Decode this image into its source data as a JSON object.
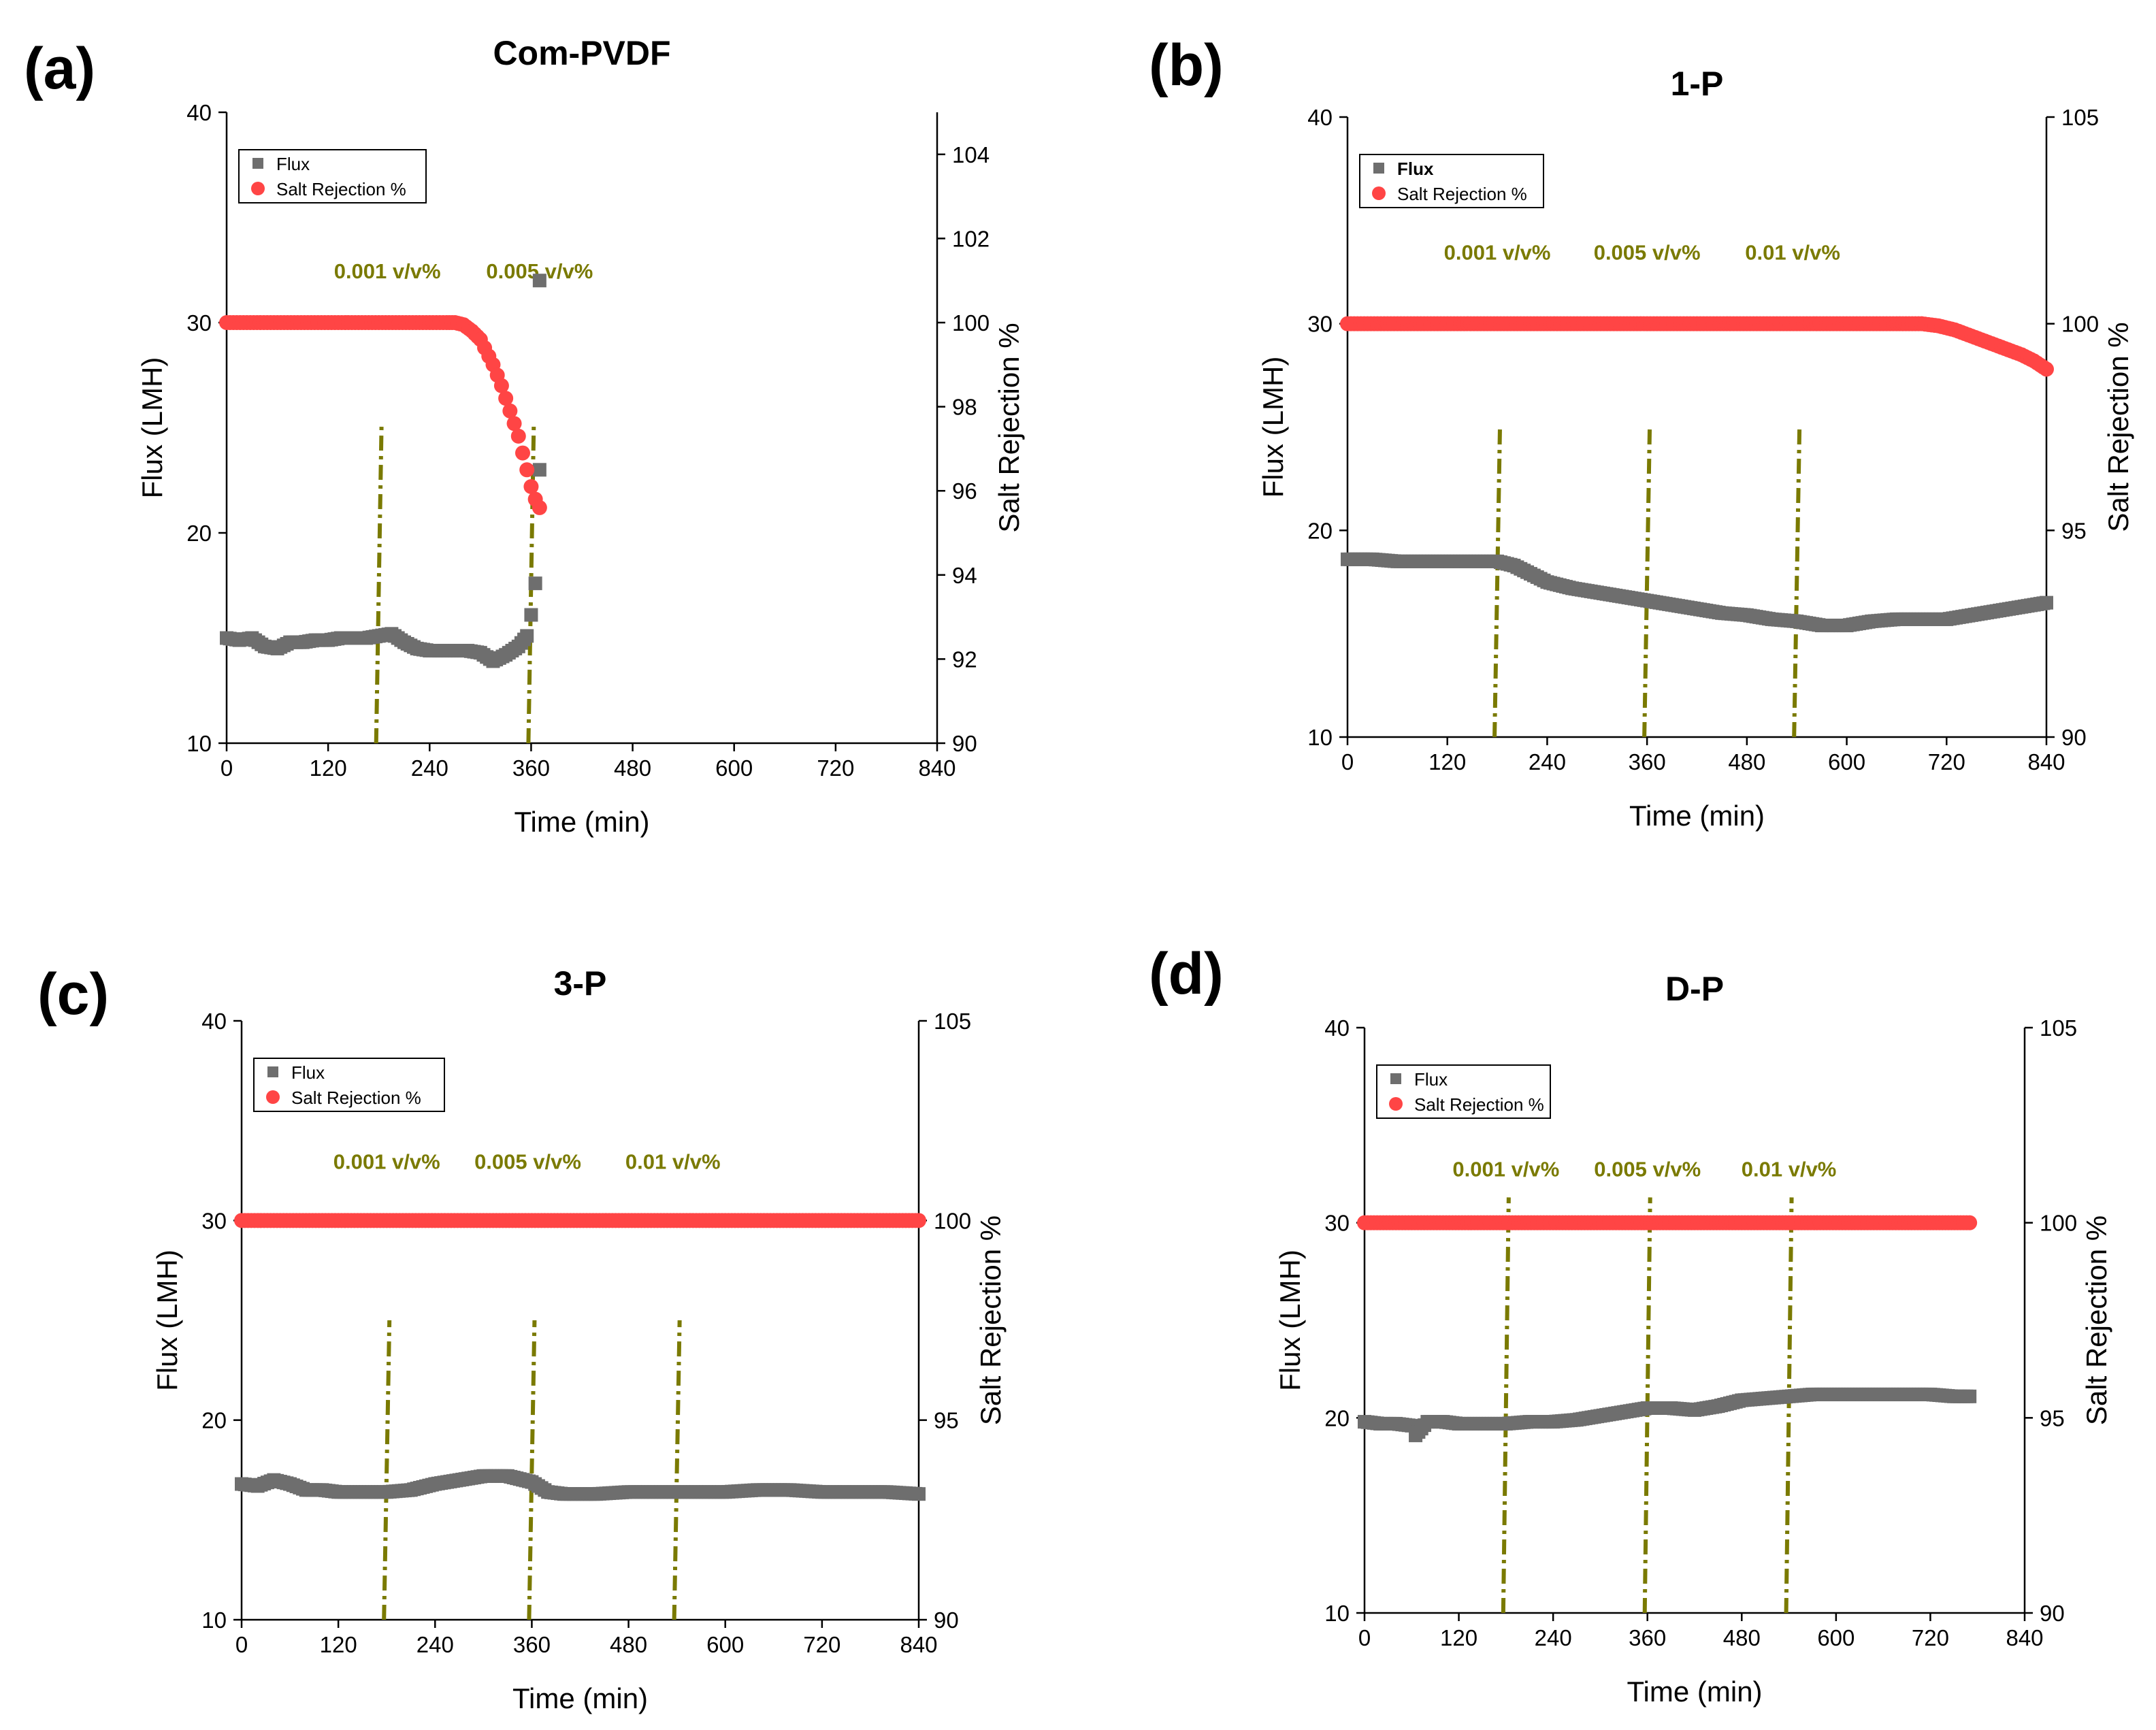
{
  "chart_data": [
    {
      "type": "scatter",
      "panel_label": "(a)",
      "title": "Com-PVDF",
      "xlabel": "Time (min)",
      "ylabel": "Flux (LMH)",
      "y2label": "Salt Rejection %",
      "xlim": [
        0,
        840
      ],
      "ylim": [
        10,
        40
      ],
      "y2lim": [
        90,
        105
      ],
      "x_ticks": [
        "0",
        "120",
        "240",
        "360",
        "480",
        "600",
        "720",
        "840"
      ],
      "y_ticks": [
        "10",
        "20",
        "30",
        "40"
      ],
      "y2_ticks": [
        "90",
        "92",
        "94",
        "96",
        "98",
        "100",
        "102",
        "104"
      ],
      "legend": {
        "position": "top-left",
        "entries": [
          "Flux",
          "Salt Rejection %"
        ]
      },
      "legend_bold": false,
      "annotations": [
        {
          "text": "0.001 v/v%",
          "x": 190
        },
        {
          "text": "0.005 v/v%",
          "x": 370
        }
      ],
      "vlines": [
        180,
        360
      ],
      "vline_top": 25.3,
      "series": [
        {
          "name": "Flux",
          "marker": "square",
          "color": "#6e6e6e",
          "x": [
            0,
            15,
            30,
            45,
            60,
            75,
            90,
            105,
            120,
            135,
            150,
            165,
            180,
            195,
            210,
            225,
            240,
            255,
            270,
            285,
            300,
            315,
            330,
            345,
            355,
            360,
            365,
            370
          ],
          "y": [
            15.0,
            14.9,
            15.0,
            14.6,
            14.5,
            14.8,
            14.8,
            14.9,
            14.9,
            15.0,
            15.0,
            15.0,
            15.1,
            15.2,
            14.8,
            14.5,
            14.4,
            14.4,
            14.4,
            14.4,
            14.3,
            13.9,
            14.2,
            14.6,
            15.1,
            16.1,
            17.6,
            23.0
          ]
        },
        {
          "name": "Flux outlier",
          "marker": "square",
          "color": "#6e6e6e",
          "x": [
            370
          ],
          "y": [
            32.0
          ]
        },
        {
          "name": "Salt Rejection %",
          "marker": "circle",
          "color": "#ff4545",
          "x": [
            0,
            20,
            40,
            60,
            80,
            100,
            120,
            140,
            160,
            180,
            200,
            220,
            240,
            260,
            270,
            280,
            290,
            300,
            305,
            310,
            315,
            320,
            325,
            330,
            335,
            340,
            345,
            350,
            355,
            360,
            365,
            370
          ],
          "y": [
            100,
            100,
            100,
            100,
            100,
            100,
            100,
            100,
            100,
            100,
            100,
            100,
            100,
            100,
            100,
            99.95,
            99.8,
            99.6,
            99.4,
            99.2,
            99.0,
            98.75,
            98.5,
            98.2,
            97.9,
            97.6,
            97.3,
            96.9,
            96.5,
            96.1,
            95.8,
            95.6
          ]
        }
      ]
    },
    {
      "type": "scatter",
      "panel_label": "(b)",
      "title": "1-P",
      "xlabel": "Time (min)",
      "ylabel": "Flux (LMH)",
      "y2label": "Salt Rejection %",
      "xlim": [
        0,
        840
      ],
      "ylim": [
        10,
        40
      ],
      "y2lim": [
        90,
        105
      ],
      "x_ticks": [
        "0",
        "120",
        "240",
        "360",
        "480",
        "600",
        "720",
        "840"
      ],
      "y_ticks": [
        "10",
        "20",
        "30",
        "40"
      ],
      "y2_ticks": [
        "90",
        "95",
        "100",
        "105"
      ],
      "legend": {
        "position": "top-left",
        "entries": [
          "Flux",
          "Salt Rejection %"
        ]
      },
      "legend_bold": true,
      "annotations": [
        {
          "text": "0.001 v/v%",
          "x": 180
        },
        {
          "text": "0.005 v/v%",
          "x": 360
        },
        {
          "text": "0.01 v/v%",
          "x": 535
        }
      ],
      "vlines": [
        180,
        360,
        540
      ],
      "vline_top": 25.1,
      "series": [
        {
          "name": "Flux",
          "marker": "square",
          "color": "#6e6e6e",
          "x": [
            0,
            30,
            60,
            90,
            120,
            150,
            180,
            200,
            220,
            240,
            270,
            300,
            330,
            360,
            390,
            420,
            450,
            480,
            510,
            540,
            570,
            600,
            630,
            660,
            690,
            720,
            750,
            780,
            810,
            840
          ],
          "y": [
            18.6,
            18.6,
            18.5,
            18.5,
            18.5,
            18.5,
            18.5,
            18.3,
            17.9,
            17.5,
            17.2,
            17.0,
            16.8,
            16.6,
            16.4,
            16.2,
            16.0,
            15.9,
            15.7,
            15.6,
            15.4,
            15.4,
            15.6,
            15.7,
            15.7,
            15.7,
            15.9,
            16.1,
            16.3,
            16.5
          ]
        },
        {
          "name": "Salt Rejection %",
          "marker": "circle",
          "color": "#ff4545",
          "x": [
            0,
            60,
            120,
            180,
            240,
            300,
            360,
            420,
            480,
            540,
            600,
            660,
            690,
            710,
            730,
            750,
            770,
            790,
            810,
            825,
            840
          ],
          "y": [
            100,
            100,
            100,
            100,
            100,
            100,
            100,
            100,
            100,
            100,
            100,
            100,
            100,
            99.95,
            99.85,
            99.7,
            99.55,
            99.4,
            99.25,
            99.1,
            98.9
          ]
        }
      ]
    },
    {
      "type": "scatter",
      "panel_label": "(c)",
      "title": "3-P",
      "xlabel": "Time (min)",
      "ylabel": "Flux (LMH)",
      "y2label": "Salt Rejection %",
      "xlim": [
        0,
        840
      ],
      "ylim": [
        10,
        40
      ],
      "y2lim": [
        90,
        105
      ],
      "x_ticks": [
        "0",
        "120",
        "240",
        "360",
        "480",
        "600",
        "720",
        "840"
      ],
      "y_ticks": [
        "10",
        "20",
        "30",
        "40"
      ],
      "y2_ticks": [
        "90",
        "95",
        "100",
        "105"
      ],
      "legend": {
        "position": "top-left",
        "entries": [
          "Flux",
          "Salt Rejection %"
        ]
      },
      "legend_bold": false,
      "annotations": [
        {
          "text": "0.001 v/v%",
          "x": 180
        },
        {
          "text": "0.005 v/v%",
          "x": 355
        },
        {
          "text": "0.01 v/v%",
          "x": 535
        }
      ],
      "vlines": [
        180,
        360,
        540
      ],
      "vline_top": 25.0,
      "series": [
        {
          "name": "Flux",
          "marker": "square",
          "color": "#6e6e6e",
          "x": [
            0,
            20,
            40,
            60,
            80,
            100,
            120,
            150,
            180,
            210,
            240,
            270,
            300,
            330,
            360,
            380,
            400,
            440,
            480,
            520,
            560,
            600,
            640,
            680,
            720,
            760,
            800,
            840
          ],
          "y": [
            16.8,
            16.7,
            17.0,
            16.8,
            16.5,
            16.5,
            16.4,
            16.4,
            16.4,
            16.5,
            16.8,
            17.0,
            17.2,
            17.2,
            16.9,
            16.4,
            16.3,
            16.3,
            16.4,
            16.4,
            16.4,
            16.4,
            16.5,
            16.5,
            16.4,
            16.4,
            16.4,
            16.3
          ]
        },
        {
          "name": "Salt Rejection %",
          "marker": "circle",
          "color": "#ff4545",
          "x": [
            0,
            60,
            120,
            180,
            240,
            300,
            360,
            420,
            480,
            540,
            600,
            660,
            720,
            780,
            840
          ],
          "y": [
            100,
            100,
            100,
            100,
            100,
            100,
            100,
            100,
            100,
            100,
            100,
            100,
            100,
            100,
            100
          ]
        }
      ]
    },
    {
      "type": "scatter",
      "panel_label": "(d)",
      "title": "D-P",
      "xlabel": "Time (min)",
      "ylabel": "Flux (LMH)",
      "y2label": "Salt Rejection %",
      "xlim": [
        0,
        840
      ],
      "ylim": [
        10,
        40
      ],
      "y2lim": [
        90,
        105
      ],
      "x_ticks": [
        "0",
        "120",
        "240",
        "360",
        "480",
        "600",
        "720",
        "840"
      ],
      "y_ticks": [
        "10",
        "20",
        "30",
        "40"
      ],
      "y2_ticks": [
        "90",
        "95",
        "100",
        "105"
      ],
      "legend": {
        "position": "top-left",
        "entries": [
          "Flux",
          "Salt Rejection %"
        ]
      },
      "legend_bold": false,
      "annotations": [
        {
          "text": "0.001 v/v%",
          "x": 180
        },
        {
          "text": "0.005 v/v%",
          "x": 360
        },
        {
          "text": "0.01 v/v%",
          "x": 540
        }
      ],
      "vlines": [
        180,
        360,
        540
      ],
      "vline_top": 31.3,
      "series": [
        {
          "name": "Flux",
          "marker": "square",
          "color": "#6e6e6e",
          "x": [
            0,
            20,
            40,
            60,
            65,
            80,
            100,
            120,
            150,
            180,
            210,
            240,
            270,
            300,
            330,
            360,
            390,
            420,
            450,
            480,
            510,
            540,
            570,
            600,
            630,
            660,
            690,
            720,
            750,
            770
          ],
          "y": [
            19.8,
            19.7,
            19.7,
            19.6,
            19.1,
            19.8,
            19.8,
            19.7,
            19.7,
            19.7,
            19.8,
            19.8,
            19.9,
            20.1,
            20.3,
            20.5,
            20.5,
            20.4,
            20.6,
            20.9,
            21.0,
            21.1,
            21.2,
            21.2,
            21.2,
            21.2,
            21.2,
            21.2,
            21.1,
            21.1
          ]
        },
        {
          "name": "Salt Rejection %",
          "marker": "circle",
          "color": "#ff4545",
          "x": [
            0,
            60,
            120,
            180,
            240,
            300,
            360,
            420,
            480,
            540,
            600,
            660,
            720,
            770
          ],
          "y": [
            100,
            100,
            100,
            100,
            100,
            100,
            100,
            100,
            100,
            100,
            100,
            100,
            100,
            100
          ]
        }
      ]
    }
  ]
}
